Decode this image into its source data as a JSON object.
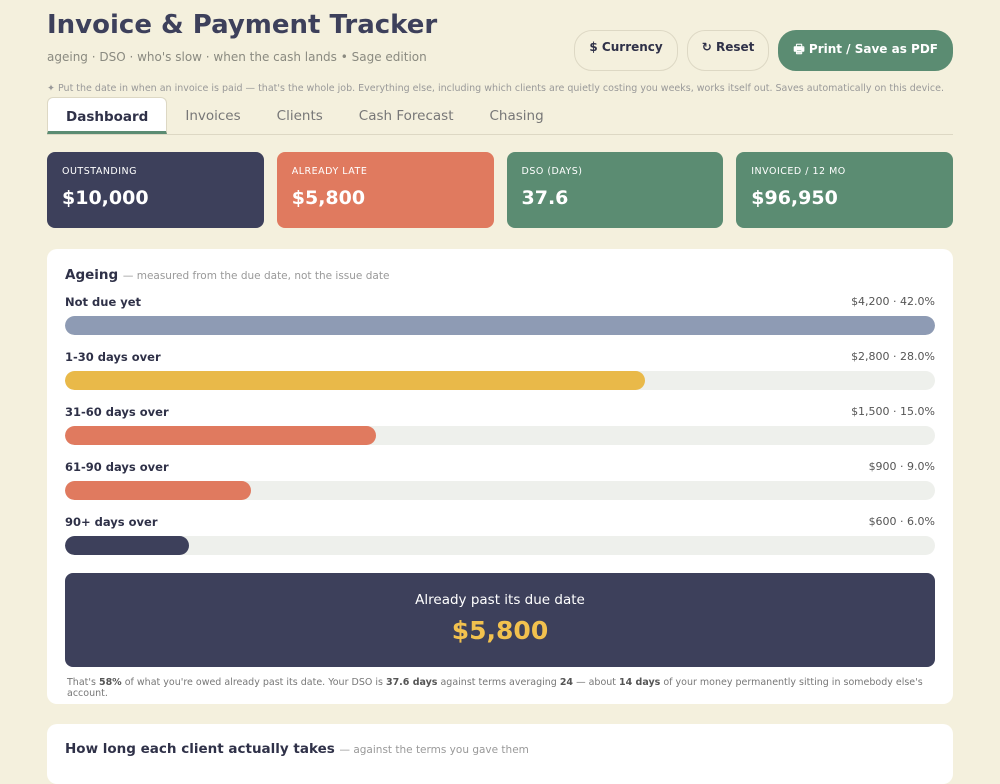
{
  "header": {
    "title": "Invoice & Payment Tracker",
    "subtitle": "ageing · DSO · who's slow · when the cash lands  •  Sage edition",
    "buttons": [
      "$ Currency",
      "↻ Reset",
      "🖶 Print / Save as PDF"
    ],
    "hint": "✦ Put the date in when an invoice is paid — that's the whole job. Everything else, including which clients are quietly costing you weeks, works itself out. Saves automatically on this device."
  },
  "tabs": [
    "Dashboard",
    "Invoices",
    "Clients",
    "Cash Forecast",
    "Chasing"
  ],
  "kpis": [
    {
      "label": "OUTSTANDING",
      "value": "$10,000"
    },
    {
      "label": "ALREADY LATE",
      "value": "$5,800"
    },
    {
      "label": "DSO (DAYS)",
      "value": "37.6"
    },
    {
      "label": "INVOICED / 12 MO",
      "value": "$96,950"
    }
  ],
  "ageing": {
    "title": "Ageing",
    "subtitle": "— measured from the due date, not the issue date",
    "buckets": [
      {
        "label": "Not due yet",
        "amount": 4200,
        "amount_label": "$4,200 · 42.0%",
        "color": "#8e9bb4"
      },
      {
        "label": "1-30 days over",
        "amount": 2800,
        "amount_label": "$2,800 · 28.0%",
        "color": "#e9b949"
      },
      {
        "label": "31-60 days over",
        "amount": 1500,
        "amount_label": "$1,500 · 15.0%",
        "color": "#e07a5f"
      },
      {
        "label": "61-90 days over",
        "amount": 900,
        "amount_label": "$900 · 9.0%",
        "color": "#e07a5f"
      },
      {
        "label": "90+ days over",
        "amount": 600,
        "amount_label": "$600 · 6.0%",
        "color": "#3d405b"
      }
    ],
    "late_box": {
      "caption": "Already past its due date",
      "value": "$5,800"
    },
    "note": [
      "That's ",
      "58%",
      " of what you're owed already past its date. Your DSO is ",
      "37.6 days",
      " against terms averaging ",
      "24",
      " — about ",
      "14 days",
      " of your money permanently sitting in somebody else's account."
    ]
  },
  "next_section": {
    "title": "How long each client actually takes",
    "subtitle": "— against the terms you gave them"
  }
}
